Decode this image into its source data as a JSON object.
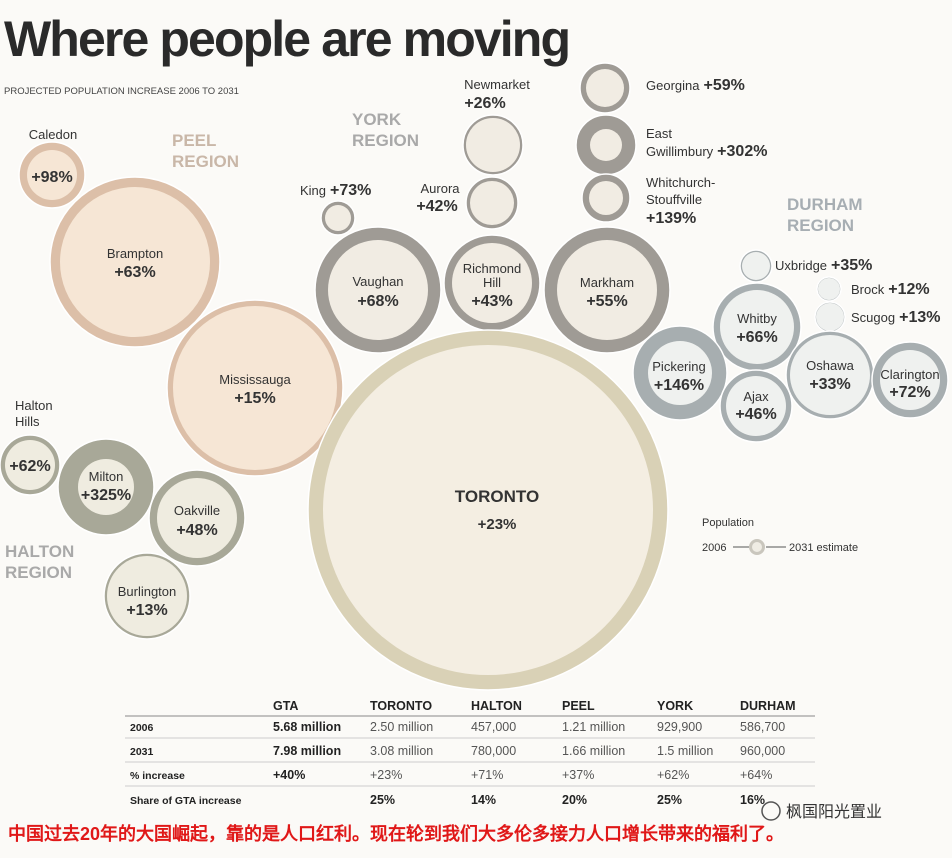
{
  "title": "Where people are moving",
  "subtitle": "PROJECTED POPULATION INCREASE 2006 TO 2031",
  "regions": [
    [
      "PEEL",
      "REGION"
    ],
    [
      "YORK",
      "REGION"
    ],
    [
      "DURHAM",
      "REGION"
    ],
    [
      "HALTON",
      "REGION"
    ]
  ],
  "bubbles": [
    {
      "name": [
        "Caledon"
      ],
      "change": "+98%"
    },
    {
      "name": [
        "Brampton"
      ],
      "change": "+63%"
    },
    {
      "name": [
        "Mississauga"
      ],
      "change": "+15%"
    },
    {
      "name": [
        "Halton",
        "Hills"
      ],
      "change": "+62%"
    },
    {
      "name": [
        "Milton"
      ],
      "change": "+325%"
    },
    {
      "name": [
        "Oakville"
      ],
      "change": "+48%"
    },
    {
      "name": [
        "Burlington"
      ],
      "change": "+13%"
    },
    {
      "name": [
        "King"
      ],
      "change": "+73%"
    },
    {
      "name": [
        "Vaughan"
      ],
      "change": "+68%"
    },
    {
      "name": [
        "Newmarket"
      ],
      "change": "+26%"
    },
    {
      "name": [
        "Aurora"
      ],
      "change": "+42%"
    },
    {
      "name": [
        "Richmond",
        "Hill"
      ],
      "change": "+43%"
    },
    {
      "name": [
        "TORONTO"
      ],
      "change": "+23%"
    },
    {
      "name": [
        "Georgina"
      ],
      "change": "+59%"
    },
    {
      "name": [
        "East",
        "Gwillimbury"
      ],
      "change": "+302%"
    },
    {
      "name": [
        "Whitchurch-",
        "Stouffville"
      ],
      "change": "+139%"
    },
    {
      "name": [
        "Markham"
      ],
      "change": "+55%"
    },
    {
      "name": [
        "Uxbridge"
      ],
      "change": "+35%"
    },
    {
      "name": [
        "Brock"
      ],
      "change": "+12%"
    },
    {
      "name": [
        "Scugog"
      ],
      "change": "+13%"
    },
    {
      "name": [
        "Whitby"
      ],
      "change": "+66%"
    },
    {
      "name": [
        "Pickering"
      ],
      "change": "+146%"
    },
    {
      "name": [
        "Ajax"
      ],
      "change": "+46%"
    },
    {
      "name": [
        "Oshawa"
      ],
      "change": "+33%"
    },
    {
      "name": [
        "Clarington"
      ],
      "change": "+72%"
    }
  ],
  "legend": {
    "title": "Population",
    "start": "2006",
    "end": "2031 estimate"
  },
  "table": {
    "header": [
      "GTA",
      "TORONTO",
      "HALTON",
      "PEEL",
      "YORK",
      "DURHAM"
    ],
    "rows": [
      [
        "2006",
        "5.68 million",
        "2.50 million",
        "457,000",
        "1.21 million",
        "929,900",
        "586,700"
      ],
      [
        "2031",
        "7.98 million",
        "3.08 million",
        "780,000",
        "1.66 million",
        "1.5 million",
        "960,000"
      ],
      [
        "% increase",
        "+40%",
        "+23%",
        "+71%",
        "+37%",
        "+62%",
        "+64%"
      ],
      [
        "Share of GTA increase",
        "",
        "25%",
        "14%",
        "20%",
        "25%",
        "16%"
      ]
    ]
  },
  "caption": "中国过去20年的大国崛起，靠的是人口红利。现在轮到我们大多伦多接力人口增长带来的福利了。",
  "watermark": "枫国阳光置业"
}
